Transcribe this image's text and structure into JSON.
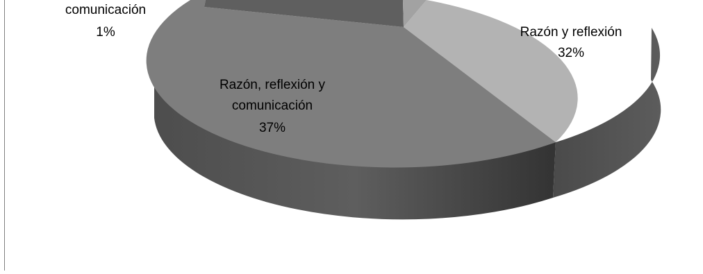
{
  "chart_data": {
    "type": "pie",
    "style": "3d",
    "slices": [
      {
        "label_lines": [
          "Razón y reflexión"
        ],
        "percent_label": "32%",
        "value": 32,
        "color": "#b3b3b3"
      },
      {
        "label_lines": [
          "Razón, reflexión y",
          "comunicación"
        ],
        "percent_label": "37%",
        "value": 37,
        "color": "#7e7e7e"
      },
      {
        "label_lines": [
          "comunicación"
        ],
        "percent_label": "1%",
        "value": 1,
        "color": "#5f5f5f"
      },
      {
        "label_lines": [],
        "percent_label": "",
        "value": 30,
        "color": "#a2a2a2"
      }
    ]
  }
}
